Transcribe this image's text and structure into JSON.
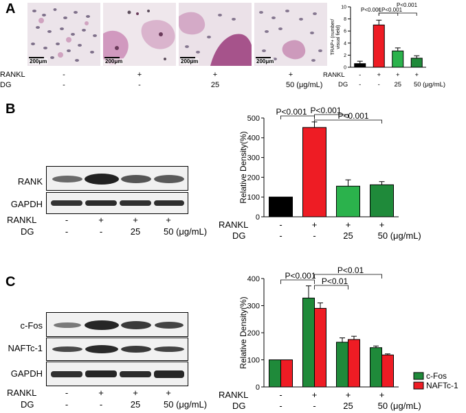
{
  "panels": {
    "A": {
      "letter": "A",
      "scale_labels": [
        "200μm",
        "200μm",
        "200μm",
        "200μm"
      ],
      "rows": [
        {
          "label": "RANKL",
          "values": [
            "-",
            "+",
            "+",
            "+"
          ]
        },
        {
          "label": "DG",
          "values": [
            "-",
            "-",
            "25",
            "50 (μg/mL)"
          ]
        }
      ]
    },
    "B": {
      "letter": "B",
      "blots": [
        "RANK",
        "GAPDH"
      ],
      "rows": [
        {
          "label": "RANKL",
          "values": [
            "-",
            "+",
            "+",
            "+"
          ]
        },
        {
          "label": "DG",
          "values": [
            "-",
            "-",
            "25",
            "50 (μg/mL)"
          ]
        }
      ]
    },
    "C": {
      "letter": "C",
      "blots": [
        "c-Fos",
        "NAFTc-1",
        "GAPDH"
      ],
      "rows": [
        {
          "label": "RANKL",
          "values": [
            "-",
            "+",
            "+",
            "+"
          ]
        },
        {
          "label": "DG",
          "values": [
            "-",
            "-",
            "25",
            "50 (μg/mL)"
          ]
        }
      ]
    }
  },
  "chart_data": [
    {
      "id": "A",
      "type": "bar",
      "categories": [
        "1",
        "2",
        "3",
        "4"
      ],
      "values": [
        0.6,
        7.0,
        2.7,
        1.5
      ],
      "errors": [
        0.4,
        0.8,
        0.5,
        0.4
      ],
      "colors": [
        "#000000",
        "#ee1c24",
        "#2bb24c",
        "#1f8a3a"
      ],
      "ylabel": "TRAP+ (number/ visual field)",
      "ylim": [
        0,
        10
      ],
      "yticks": [
        "0",
        "2",
        "4",
        "6",
        "8",
        "10"
      ],
      "xrows": [
        {
          "label": "RANKL",
          "values": [
            "-",
            "+",
            "+",
            "+"
          ]
        },
        {
          "label": "DG",
          "values": [
            "-",
            "-",
            "25",
            "50 (μg/mL)"
          ]
        }
      ],
      "brackets": [
        {
          "from": 1,
          "to": 2,
          "text": "P<0.001"
        },
        {
          "from": 1,
          "to": 3,
          "text": "P<0.001"
        },
        {
          "from": 1,
          "to": 4,
          "text": "P<0.001"
        }
      ]
    },
    {
      "id": "B",
      "type": "bar",
      "categories": [
        "1",
        "2",
        "3",
        "4"
      ],
      "values": [
        100,
        452,
        155,
        162
      ],
      "errors": [
        0,
        28,
        32,
        16
      ],
      "colors": [
        "#000000",
        "#ee1c24",
        "#2bb24c",
        "#1f8a3a"
      ],
      "ylabel": "Relative Density(%)",
      "ylim": [
        0,
        500
      ],
      "yticks": [
        "0",
        "100",
        "200",
        "300",
        "400",
        "500"
      ],
      "xrows": [
        {
          "label": "RANKL",
          "values": [
            "-",
            "+",
            "+",
            "+"
          ]
        },
        {
          "label": "DG",
          "values": [
            "-",
            "-",
            "25",
            "50 (μg/mL)"
          ]
        }
      ],
      "brackets": [
        {
          "from": 0,
          "to": 1,
          "text": "P<0.001"
        },
        {
          "from": 1,
          "to": 2,
          "text": "P<0.001"
        },
        {
          "from": 1,
          "to": 3,
          "text": "P<0.001"
        }
      ]
    },
    {
      "id": "C",
      "type": "bar",
      "categories": [
        "1",
        "2",
        "3",
        "4"
      ],
      "series": [
        {
          "name": "c-Fos",
          "color": "#1f8a3a",
          "values": [
            100,
            328,
            165,
            145
          ],
          "errors": [
            0,
            45,
            16,
            6
          ]
        },
        {
          "name": "NAFTc-1",
          "color": "#ee1c24",
          "values": [
            100,
            290,
            175,
            118
          ],
          "errors": [
            0,
            20,
            12,
            4
          ]
        }
      ],
      "ylabel": "Relative Density(%)",
      "ylim": [
        0,
        400
      ],
      "yticks": [
        "0",
        "100",
        "200",
        "300",
        "400"
      ],
      "xrows": [
        {
          "label": "RANKL",
          "values": [
            "-",
            "+",
            "+",
            "+"
          ]
        },
        {
          "label": "DG",
          "values": [
            "-",
            "-",
            "25",
            "50 (μg/mL)"
          ]
        }
      ],
      "legend": "bottom-right",
      "brackets": [
        {
          "from": 0,
          "to": 1,
          "text": "P<0.001"
        },
        {
          "from": 1,
          "to": 2,
          "text": "P<0.01"
        },
        {
          "from": 1,
          "to": 3,
          "text": "P<0.01"
        }
      ]
    }
  ]
}
